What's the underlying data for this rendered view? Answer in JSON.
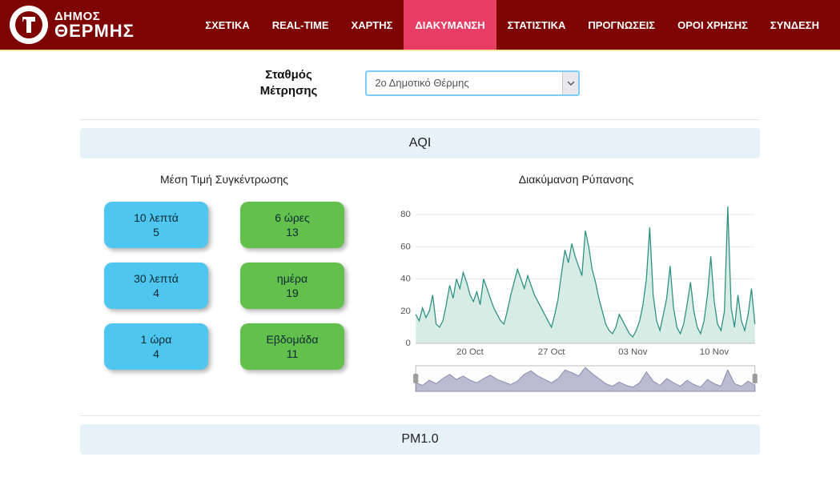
{
  "brand": {
    "line1": "ΔΗΜΟΣ",
    "line2": "ΘΕΡΜΗΣ"
  },
  "nav": {
    "items": [
      {
        "label": "ΣΧΕΤΙΚΑ",
        "active": false
      },
      {
        "label": "REAL-TIME",
        "active": false
      },
      {
        "label": "ΧΑΡΤΗΣ",
        "active": false
      },
      {
        "label": "ΔΙΑΚΥΜΑΝΣΗ",
        "active": true
      },
      {
        "label": "ΣΤΑΤΙΣΤΙΚΑ",
        "active": false
      },
      {
        "label": "ΠΡΟΓΝΩΣΕΙΣ",
        "active": false
      },
      {
        "label": "ΟΡΟΙ ΧΡΗΣΗΣ",
        "active": false
      },
      {
        "label": "ΣΥΝΔΕΣΗ",
        "active": false
      }
    ]
  },
  "station": {
    "label_line1": "Σταθμός",
    "label_line2": "Μέτρησης",
    "selected": "2ο Δημοτικό Θέρμης"
  },
  "sections": {
    "aqi": {
      "header": "AQI",
      "left_title": "Μέση Τιμή Συγκέντρωσης",
      "right_title": "Διακύμανση Ρύπανσης",
      "tiles": [
        {
          "label": "10 λεπτά",
          "value": "5",
          "color": "blue"
        },
        {
          "label": "6 ώρες",
          "value": "13",
          "color": "green"
        },
        {
          "label": "30 λεπτά",
          "value": "4",
          "color": "blue"
        },
        {
          "label": "ημέρα",
          "value": "19",
          "color": "green"
        },
        {
          "label": "1 ώρα",
          "value": "4",
          "color": "blue"
        },
        {
          "label": "Εβδομάδα",
          "value": "11",
          "color": "green"
        }
      ],
      "main_chart": {
        "type": "area-line",
        "stroke_color": "#2a8f7f",
        "fill_color": "#d6ece5",
        "grid_color": "#e7e7e7",
        "background_color": "#ffffff",
        "y_axis": {
          "min": 0,
          "max": 85,
          "ticks": [
            0,
            20,
            40,
            60,
            80
          ],
          "fontsize": 11,
          "color": "#555555"
        },
        "x_axis": {
          "labels": [
            "20 Oct",
            "27 Oct",
            "03 Nov",
            "10 Nov"
          ],
          "label_positions_pct": [
            16,
            40,
            64,
            88
          ],
          "fontsize": 11,
          "color": "#555555"
        },
        "data_pct": [
          [
            0,
            18
          ],
          [
            1,
            14
          ],
          [
            2,
            22
          ],
          [
            3,
            16
          ],
          [
            4,
            20
          ],
          [
            5,
            30
          ],
          [
            6,
            12
          ],
          [
            7,
            10
          ],
          [
            8,
            14
          ],
          [
            9,
            24
          ],
          [
            10,
            36
          ],
          [
            11,
            28
          ],
          [
            12,
            40
          ],
          [
            13,
            34
          ],
          [
            14,
            44
          ],
          [
            15,
            38
          ],
          [
            16,
            30
          ],
          [
            17,
            26
          ],
          [
            18,
            32
          ],
          [
            19,
            24
          ],
          [
            20,
            40
          ],
          [
            21,
            34
          ],
          [
            22,
            28
          ],
          [
            23,
            22
          ],
          [
            24,
            18
          ],
          [
            25,
            14
          ],
          [
            26,
            12
          ],
          [
            27,
            20
          ],
          [
            28,
            30
          ],
          [
            29,
            38
          ],
          [
            30,
            46
          ],
          [
            31,
            40
          ],
          [
            32,
            34
          ],
          [
            33,
            42
          ],
          [
            34,
            36
          ],
          [
            35,
            30
          ],
          [
            36,
            26
          ],
          [
            37,
            22
          ],
          [
            38,
            18
          ],
          [
            39,
            14
          ],
          [
            40,
            10
          ],
          [
            41,
            18
          ],
          [
            42,
            28
          ],
          [
            43,
            44
          ],
          [
            44,
            58
          ],
          [
            45,
            50
          ],
          [
            46,
            62
          ],
          [
            47,
            54
          ],
          [
            48,
            48
          ],
          [
            49,
            42
          ],
          [
            50,
            70
          ],
          [
            51,
            60
          ],
          [
            52,
            46
          ],
          [
            53,
            38
          ],
          [
            54,
            28
          ],
          [
            55,
            20
          ],
          [
            56,
            12
          ],
          [
            57,
            8
          ],
          [
            58,
            6
          ],
          [
            59,
            10
          ],
          [
            60,
            18
          ],
          [
            61,
            14
          ],
          [
            62,
            10
          ],
          [
            63,
            6
          ],
          [
            64,
            4
          ],
          [
            65,
            8
          ],
          [
            66,
            14
          ],
          [
            67,
            24
          ],
          [
            68,
            40
          ],
          [
            69,
            72
          ],
          [
            70,
            30
          ],
          [
            71,
            14
          ],
          [
            72,
            8
          ],
          [
            73,
            18
          ],
          [
            74,
            28
          ],
          [
            75,
            48
          ],
          [
            76,
            22
          ],
          [
            77,
            10
          ],
          [
            78,
            6
          ],
          [
            79,
            12
          ],
          [
            80,
            24
          ],
          [
            81,
            38
          ],
          [
            82,
            20
          ],
          [
            83,
            10
          ],
          [
            84,
            6
          ],
          [
            85,
            14
          ],
          [
            86,
            30
          ],
          [
            87,
            54
          ],
          [
            88,
            26
          ],
          [
            89,
            12
          ],
          [
            90,
            8
          ],
          [
            91,
            20
          ],
          [
            92,
            85
          ],
          [
            93,
            22
          ],
          [
            94,
            10
          ],
          [
            95,
            30
          ],
          [
            96,
            14
          ],
          [
            97,
            8
          ],
          [
            98,
            18
          ],
          [
            99,
            34
          ],
          [
            100,
            12
          ]
        ]
      },
      "mini_chart": {
        "type": "area",
        "fill_color": "#a9a9c4",
        "stroke_color": "#8d8db0",
        "border_color": "#bcbcbc",
        "handle_color": "#9d9d9d",
        "data_pct": [
          [
            0,
            20
          ],
          [
            2,
            14
          ],
          [
            4,
            26
          ],
          [
            6,
            18
          ],
          [
            8,
            30
          ],
          [
            10,
            40
          ],
          [
            12,
            28
          ],
          [
            14,
            36
          ],
          [
            16,
            26
          ],
          [
            18,
            20
          ],
          [
            20,
            30
          ],
          [
            22,
            38
          ],
          [
            24,
            28
          ],
          [
            26,
            22
          ],
          [
            28,
            16
          ],
          [
            30,
            24
          ],
          [
            32,
            40
          ],
          [
            34,
            48
          ],
          [
            36,
            36
          ],
          [
            38,
            28
          ],
          [
            40,
            20
          ],
          [
            42,
            30
          ],
          [
            44,
            50
          ],
          [
            46,
            44
          ],
          [
            48,
            36
          ],
          [
            50,
            56
          ],
          [
            52,
            42
          ],
          [
            54,
            30
          ],
          [
            56,
            18
          ],
          [
            58,
            12
          ],
          [
            60,
            22
          ],
          [
            62,
            14
          ],
          [
            64,
            10
          ],
          [
            66,
            20
          ],
          [
            68,
            46
          ],
          [
            70,
            24
          ],
          [
            72,
            14
          ],
          [
            74,
            30
          ],
          [
            76,
            20
          ],
          [
            78,
            12
          ],
          [
            80,
            26
          ],
          [
            82,
            16
          ],
          [
            84,
            10
          ],
          [
            86,
            28
          ],
          [
            88,
            18
          ],
          [
            90,
            12
          ],
          [
            92,
            50
          ],
          [
            94,
            18
          ],
          [
            96,
            12
          ],
          [
            98,
            24
          ],
          [
            100,
            14
          ]
        ]
      }
    },
    "pm10": {
      "header": "PM1.0"
    }
  },
  "colors": {
    "navbar_bg": "#7e0303",
    "nav_active_bg": "#e83e66",
    "section_header_bg": "#e6f2f8",
    "tile_blue": "#4ec6ef",
    "tile_green": "#63c04d",
    "select_border": "#7ecbf5"
  }
}
